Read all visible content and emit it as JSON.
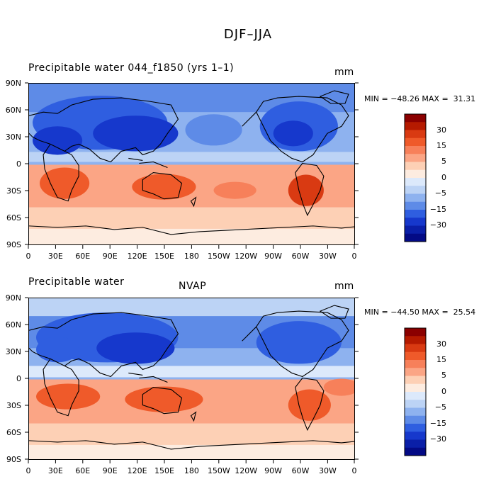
{
  "figure": {
    "title": "DJF–JJA"
  },
  "panels": [
    {
      "title": "Precipitable water 044_f1850 (yrs 1–1)",
      "center_title": "",
      "units": "mm",
      "min_label": "MIN = ",
      "min": "−48.26",
      "max_label": " MAX = ",
      "max": " 31.31"
    },
    {
      "title": "Precipitable water",
      "center_title": "NVAP",
      "units": "mm",
      "min_label": "MIN = ",
      "min": "−44.50",
      "max_label": " MAX = ",
      "max": " 25.54"
    }
  ],
  "axes": {
    "lat_labels": [
      "90N",
      "60N",
      "30N",
      "0",
      "30S",
      "60S",
      "90S"
    ],
    "lon_labels": [
      "0",
      "30E",
      "60E",
      "90E",
      "120E",
      "150E",
      "180",
      "150W",
      "120W",
      "90W",
      "60W",
      "30W",
      "0"
    ]
  },
  "colorbar": {
    "labels": [
      "30",
      "15",
      "5",
      "0",
      "−5",
      "−15",
      "−30"
    ],
    "colors": [
      "#8b0000",
      "#b51a00",
      "#d93a12",
      "#ef5a2a",
      "#f7805a",
      "#fba585",
      "#fdd0b5",
      "#fdece0",
      "#dce9fb",
      "#bcd3f5",
      "#8eb2ef",
      "#5e8be7",
      "#2f5ee0",
      "#1638cc",
      "#0a1fa8",
      "#030a85"
    ]
  }
}
